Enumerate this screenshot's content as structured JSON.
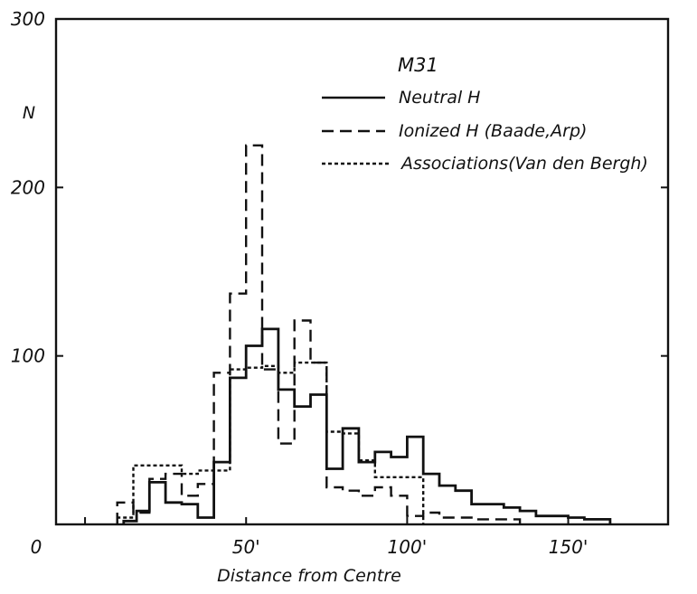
{
  "chart_data": {
    "type": "step-histogram",
    "title": "M31",
    "xlabel": "Distance from Centre",
    "ylabel": "N",
    "xlim": [
      -9,
      181
    ],
    "ylim": [
      0,
      300
    ],
    "x_ticks": [
      {
        "value": 0,
        "label": "0"
      },
      {
        "value": 50,
        "label": "50'"
      },
      {
        "value": 100,
        "label": "100'"
      },
      {
        "value": 150,
        "label": "150'"
      }
    ],
    "y_ticks": [
      {
        "value": 100,
        "label": "100"
      },
      {
        "value": 200,
        "label": "200"
      },
      {
        "value": 300,
        "label": "300"
      }
    ],
    "legend_position": "top-right",
    "series": [
      {
        "name": "Neutral H",
        "style": "solid",
        "edges": [
          12,
          16,
          20,
          25,
          30,
          35,
          40,
          45,
          50,
          55,
          60,
          65,
          70,
          75,
          80,
          85,
          90,
          95,
          100,
          105,
          110,
          115,
          120,
          125,
          130,
          135,
          140,
          145,
          150,
          155,
          160,
          163
        ],
        "values": [
          2,
          8,
          25,
          13,
          12,
          4,
          37,
          87,
          106,
          116,
          80,
          70,
          77,
          33,
          57,
          37,
          43,
          40,
          52,
          30,
          23,
          20,
          12,
          12,
          10,
          8,
          5,
          5,
          4,
          3,
          3
        ]
      },
      {
        "name": "Ionized H (Baade, Arp)",
        "style": "dashed",
        "edges": [
          10,
          15,
          20,
          25,
          30,
          35,
          40,
          45,
          50,
          55,
          60,
          65,
          70,
          75,
          80,
          85,
          90,
          95,
          100,
          105,
          110,
          115,
          120,
          125,
          130,
          135
        ],
        "values": [
          13,
          7,
          27,
          30,
          17,
          24,
          90,
          137,
          225,
          92,
          48,
          121,
          96,
          22,
          20,
          17,
          22,
          17,
          5,
          7,
          4,
          4,
          3,
          3,
          3
        ]
      },
      {
        "name": "Associations (Van den Bergh)",
        "style": "dotted",
        "edges": [
          10,
          15,
          20,
          25,
          30,
          35,
          40,
          45,
          50,
          55,
          60,
          65,
          70,
          75,
          80,
          85,
          90,
          95,
          100,
          105
        ],
        "values": [
          4,
          35,
          35,
          35,
          30,
          32,
          32,
          92,
          93,
          94,
          90,
          96,
          96,
          55,
          54,
          38,
          28,
          28,
          28
        ]
      }
    ],
    "legend_labels": [
      "Neutral H",
      "Ionized H (Baade,Arp)",
      "Associations(Van den Bergh)"
    ]
  }
}
